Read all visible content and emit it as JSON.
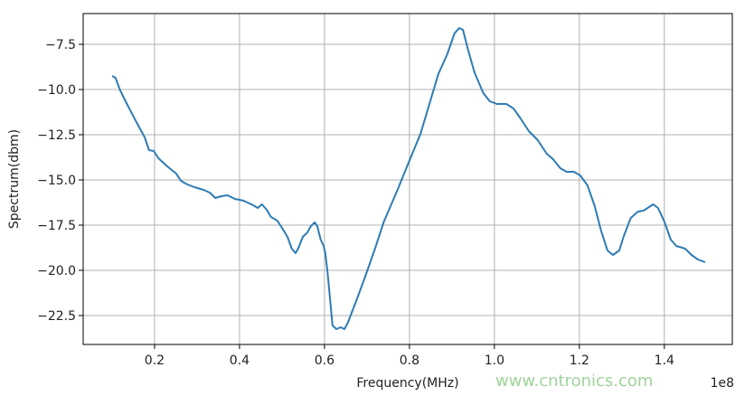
{
  "chart_data": {
    "type": "line",
    "title": "",
    "xlabel": "Frequency(MHz)",
    "ylabel": "Spectrum(dbm)",
    "x_offset_label": "1e8",
    "xlim": [
      0.032,
      1.56
    ],
    "ylim": [
      -24.1,
      -5.8
    ],
    "xticks": [
      0.2,
      0.4,
      0.6,
      0.8,
      1.0,
      1.2,
      1.4
    ],
    "xtick_labels": [
      "0.2",
      "0.4",
      "0.6",
      "0.8",
      "1.0",
      "1.2",
      "1.4"
    ],
    "yticks": [
      -7.5,
      -10,
      -12.5,
      -15,
      -17.5,
      -20,
      -22.5
    ],
    "ytick_labels": [
      "−7.5",
      "−10.0",
      "−12.5",
      "−15.0",
      "−17.5",
      "−20.0",
      "−22.5"
    ],
    "grid": true,
    "line_color": "#2e7bb4",
    "series": [
      {
        "x": [
          0.1,
          0.108,
          0.119,
          0.134,
          0.155,
          0.177,
          0.187,
          0.198,
          0.209,
          0.23,
          0.251,
          0.262,
          0.277,
          0.294,
          0.315,
          0.33,
          0.343,
          0.357,
          0.372,
          0.389,
          0.41,
          0.432,
          0.443,
          0.453,
          0.464,
          0.474,
          0.489,
          0.5,
          0.513,
          0.523,
          0.532,
          0.538,
          0.549,
          0.56,
          0.568,
          0.577,
          0.583,
          0.591,
          0.598,
          0.602,
          0.607,
          0.613,
          0.619,
          0.628,
          0.638,
          0.647,
          0.655,
          0.677,
          0.698,
          0.719,
          0.74,
          0.772,
          0.798,
          0.826,
          0.847,
          0.868,
          0.889,
          0.906,
          0.917,
          0.926,
          0.938,
          0.953,
          0.974,
          0.989,
          1.006,
          1.028,
          1.045,
          1.06,
          1.081,
          1.102,
          1.123,
          1.138,
          1.155,
          1.17,
          1.187,
          1.202,
          1.219,
          1.236,
          1.251,
          1.266,
          1.279,
          1.294,
          1.304,
          1.321,
          1.338,
          1.351,
          1.364,
          1.374,
          1.385,
          1.4,
          1.415,
          1.428,
          1.449,
          1.464,
          1.479,
          1.496
        ],
        "y": [
          -9.25,
          -9.35,
          -10.05,
          -10.75,
          -11.7,
          -12.65,
          -13.35,
          -13.4,
          -13.8,
          -14.25,
          -14.65,
          -15.05,
          -15.25,
          -15.4,
          -15.55,
          -15.7,
          -16.0,
          -15.9,
          -15.85,
          -16.05,
          -16.15,
          -16.4,
          -16.55,
          -16.35,
          -16.65,
          -17.05,
          -17.25,
          -17.65,
          -18.15,
          -18.8,
          -19.05,
          -18.8,
          -18.15,
          -17.9,
          -17.55,
          -17.35,
          -17.55,
          -18.3,
          -18.65,
          -19.05,
          -20.05,
          -21.55,
          -23.05,
          -23.25,
          -23.15,
          -23.25,
          -22.9,
          -21.55,
          -20.2,
          -18.8,
          -17.3,
          -15.55,
          -14.05,
          -12.45,
          -10.8,
          -9.15,
          -8.05,
          -6.9,
          -6.6,
          -6.7,
          -7.8,
          -9.05,
          -10.2,
          -10.65,
          -10.8,
          -10.8,
          -11.05,
          -11.55,
          -12.3,
          -12.8,
          -13.55,
          -13.85,
          -14.35,
          -14.55,
          -14.55,
          -14.75,
          -15.3,
          -16.45,
          -17.8,
          -18.9,
          -19.15,
          -18.9,
          -18.15,
          -17.1,
          -16.75,
          -16.7,
          -16.5,
          -16.35,
          -16.55,
          -17.3,
          -18.3,
          -18.65,
          -18.8,
          -19.15,
          -19.4,
          -19.55
        ]
      }
    ]
  },
  "watermark": "www.cntronics.com"
}
